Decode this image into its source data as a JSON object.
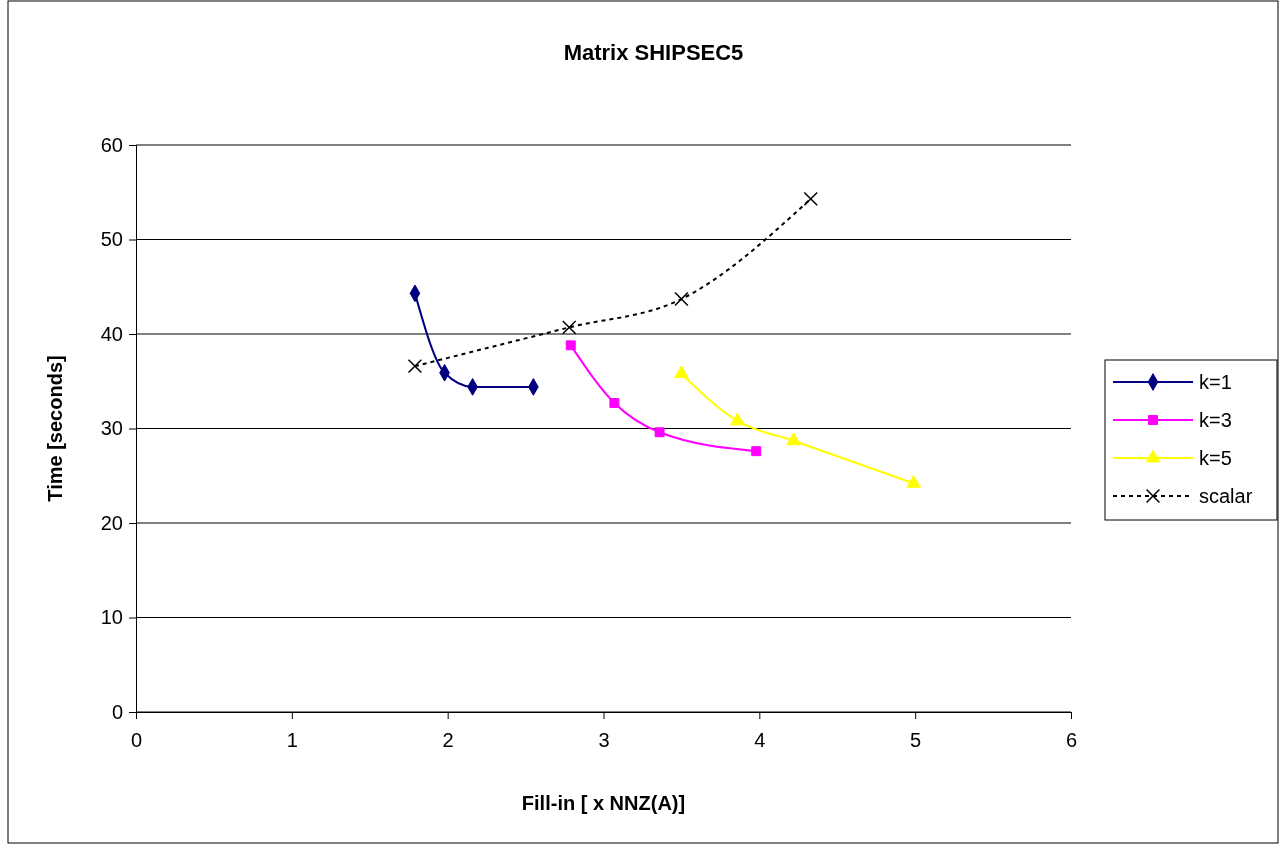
{
  "chart_data": {
    "type": "line",
    "title": "Matrix SHIPSEC5",
    "xlabel": "Fill-in [ x NNZ(A)]",
    "ylabel": "Time [seconds]",
    "xlim": [
      0,
      6
    ],
    "xticks": [
      0,
      1,
      2,
      3,
      4,
      5,
      6
    ],
    "ylim": [
      0,
      60
    ],
    "yticks": [
      0,
      10,
      20,
      30,
      40,
      50,
      60
    ],
    "grid": "y",
    "legend": "right",
    "series": [
      {
        "name": "k=1",
        "color": "#000080",
        "marker": "diamond",
        "line_style": "solid",
        "x": [
          1.79,
          1.98,
          2.16,
          2.55
        ],
        "values": [
          44.3,
          35.9,
          34.4,
          34.4
        ]
      },
      {
        "name": "k=3",
        "color": "#ff00ff",
        "marker": "square",
        "line_style": "solid",
        "x": [
          2.79,
          3.07,
          3.36,
          3.98
        ],
        "values": [
          38.8,
          32.7,
          29.6,
          27.6
        ]
      },
      {
        "name": "k=5",
        "color": "#ffff00",
        "marker": "triangle",
        "line_style": "solid",
        "x": [
          3.5,
          3.86,
          4.22,
          4.99
        ],
        "values": [
          35.8,
          30.8,
          28.7,
          24.2
        ]
      },
      {
        "name": "scalar",
        "color": "#000000",
        "marker": "cross",
        "line_style": "dotted",
        "x": [
          1.79,
          2.78,
          3.5,
          4.33
        ],
        "values": [
          36.6,
          40.7,
          43.7,
          54.3
        ]
      }
    ]
  }
}
